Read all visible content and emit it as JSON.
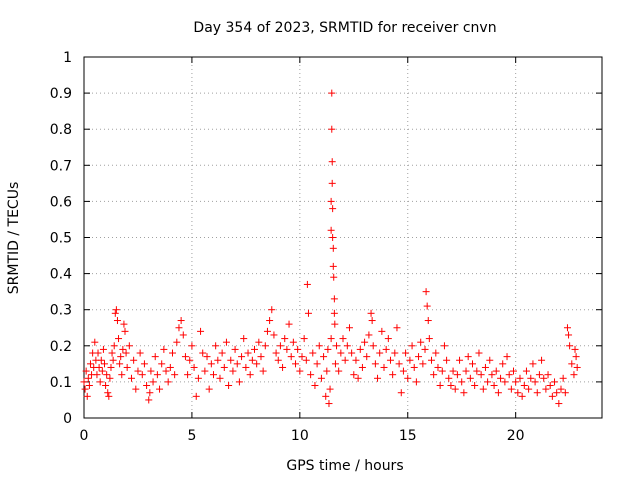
{
  "chart_data": {
    "type": "scatter",
    "title": "Day 354 of 2023, SRMTID for receiver cnvn",
    "xlabel": "GPS time / hours",
    "ylabel": "SRMTID / TECUs",
    "xlim": [
      0,
      24
    ],
    "ylim": [
      0,
      1
    ],
    "x_ticks": [
      0,
      5,
      10,
      15,
      20
    ],
    "x_tick_labels": [
      "0",
      "5",
      "10",
      "15",
      "20"
    ],
    "y_ticks": [
      0,
      0.1,
      0.2,
      0.3,
      0.4,
      0.5,
      0.6,
      0.7,
      0.8,
      0.9,
      1
    ],
    "y_tick_labels": [
      "0",
      "0.1",
      "0.2",
      "0.3",
      "0.4",
      "0.5",
      "0.6",
      "0.7",
      "0.8",
      "0.9",
      "1"
    ],
    "grid": true,
    "marker": "plus",
    "color": "#ff0000",
    "series": [
      {
        "name": "SRMTID",
        "points": [
          [
            0.0,
            0.1
          ],
          [
            0.05,
            0.08
          ],
          [
            0.1,
            0.13
          ],
          [
            0.15,
            0.06
          ],
          [
            0.2,
            0.11
          ],
          [
            0.25,
            0.09
          ],
          [
            0.3,
            0.15
          ],
          [
            0.35,
            0.12
          ],
          [
            0.4,
            0.18
          ],
          [
            0.45,
            0.14
          ],
          [
            0.5,
            0.21
          ],
          [
            0.55,
            0.16
          ],
          [
            0.6,
            0.12
          ],
          [
            0.65,
            0.18
          ],
          [
            0.7,
            0.14
          ],
          [
            0.75,
            0.1
          ],
          [
            0.8,
            0.16
          ],
          [
            0.85,
            0.13
          ],
          [
            0.9,
            0.19
          ],
          [
            0.95,
            0.15
          ],
          [
            1.0,
            0.09
          ],
          [
            1.05,
            0.12
          ],
          [
            1.1,
            0.07
          ],
          [
            1.15,
            0.06
          ],
          [
            1.2,
            0.11
          ],
          [
            1.25,
            0.14
          ],
          [
            1.3,
            0.18
          ],
          [
            1.35,
            0.16
          ],
          [
            1.4,
            0.2
          ],
          [
            1.45,
            0.29
          ],
          [
            1.5,
            0.3
          ],
          [
            1.55,
            0.27
          ],
          [
            1.6,
            0.22
          ],
          [
            1.65,
            0.15
          ],
          [
            1.7,
            0.17
          ],
          [
            1.75,
            0.12
          ],
          [
            1.8,
            0.19
          ],
          [
            1.85,
            0.26
          ],
          [
            1.9,
            0.24
          ],
          [
            1.95,
            0.18
          ],
          [
            2.0,
            0.14
          ],
          [
            2.1,
            0.2
          ],
          [
            2.2,
            0.11
          ],
          [
            2.3,
            0.16
          ],
          [
            2.4,
            0.08
          ],
          [
            2.5,
            0.13
          ],
          [
            2.6,
            0.18
          ],
          [
            2.7,
            0.12
          ],
          [
            2.8,
            0.15
          ],
          [
            2.9,
            0.09
          ],
          [
            3.0,
            0.05
          ],
          [
            3.05,
            0.07
          ],
          [
            3.1,
            0.13
          ],
          [
            3.2,
            0.1
          ],
          [
            3.3,
            0.17
          ],
          [
            3.4,
            0.12
          ],
          [
            3.5,
            0.08
          ],
          [
            3.6,
            0.15
          ],
          [
            3.7,
            0.19
          ],
          [
            3.8,
            0.13
          ],
          [
            3.9,
            0.1
          ],
          [
            4.0,
            0.14
          ],
          [
            4.1,
            0.18
          ],
          [
            4.2,
            0.12
          ],
          [
            4.3,
            0.21
          ],
          [
            4.4,
            0.25
          ],
          [
            4.5,
            0.27
          ],
          [
            4.6,
            0.23
          ],
          [
            4.7,
            0.17
          ],
          [
            4.8,
            0.12
          ],
          [
            4.9,
            0.16
          ],
          [
            5.0,
            0.2
          ],
          [
            5.1,
            0.14
          ],
          [
            5.2,
            0.06
          ],
          [
            5.3,
            0.11
          ],
          [
            5.4,
            0.24
          ],
          [
            5.5,
            0.18
          ],
          [
            5.6,
            0.13
          ],
          [
            5.7,
            0.17
          ],
          [
            5.8,
            0.08
          ],
          [
            5.9,
            0.15
          ],
          [
            6.0,
            0.12
          ],
          [
            6.1,
            0.2
          ],
          [
            6.2,
            0.16
          ],
          [
            6.3,
            0.11
          ],
          [
            6.4,
            0.18
          ],
          [
            6.5,
            0.14
          ],
          [
            6.6,
            0.21
          ],
          [
            6.7,
            0.09
          ],
          [
            6.8,
            0.16
          ],
          [
            6.9,
            0.13
          ],
          [
            7.0,
            0.19
          ],
          [
            7.1,
            0.15
          ],
          [
            7.2,
            0.1
          ],
          [
            7.3,
            0.17
          ],
          [
            7.4,
            0.22
          ],
          [
            7.5,
            0.14
          ],
          [
            7.6,
            0.18
          ],
          [
            7.7,
            0.12
          ],
          [
            7.8,
            0.16
          ],
          [
            7.9,
            0.19
          ],
          [
            8.0,
            0.15
          ],
          [
            8.1,
            0.21
          ],
          [
            8.2,
            0.17
          ],
          [
            8.3,
            0.13
          ],
          [
            8.4,
            0.2
          ],
          [
            8.5,
            0.24
          ],
          [
            8.6,
            0.27
          ],
          [
            8.7,
            0.3
          ],
          [
            8.8,
            0.23
          ],
          [
            8.9,
            0.18
          ],
          [
            9.0,
            0.16
          ],
          [
            9.1,
            0.2
          ],
          [
            9.2,
            0.14
          ],
          [
            9.3,
            0.22
          ],
          [
            9.4,
            0.19
          ],
          [
            9.5,
            0.26
          ],
          [
            9.6,
            0.17
          ],
          [
            9.7,
            0.21
          ],
          [
            9.8,
            0.15
          ],
          [
            9.9,
            0.19
          ],
          [
            10.0,
            0.13
          ],
          [
            10.1,
            0.17
          ],
          [
            10.2,
            0.22
          ],
          [
            10.3,
            0.16
          ],
          [
            10.35,
            0.37
          ],
          [
            10.4,
            0.29
          ],
          [
            10.5,
            0.12
          ],
          [
            10.6,
            0.18
          ],
          [
            10.7,
            0.09
          ],
          [
            10.8,
            0.15
          ],
          [
            10.9,
            0.2
          ],
          [
            11.0,
            0.11
          ],
          [
            11.1,
            0.17
          ],
          [
            11.2,
            0.06
          ],
          [
            11.25,
            0.13
          ],
          [
            11.3,
            0.19
          ],
          [
            11.35,
            0.04
          ],
          [
            11.4,
            0.08
          ],
          [
            11.45,
            0.22
          ],
          [
            11.45,
            0.52
          ],
          [
            11.45,
            0.6
          ],
          [
            11.48,
            0.9
          ],
          [
            11.48,
            0.8
          ],
          [
            11.5,
            0.71
          ],
          [
            11.5,
            0.65
          ],
          [
            11.52,
            0.58
          ],
          [
            11.52,
            0.5
          ],
          [
            11.55,
            0.47
          ],
          [
            11.55,
            0.42
          ],
          [
            11.57,
            0.39
          ],
          [
            11.6,
            0.33
          ],
          [
            11.6,
            0.29
          ],
          [
            11.62,
            0.26
          ],
          [
            11.65,
            0.15
          ],
          [
            11.7,
            0.2
          ],
          [
            11.8,
            0.13
          ],
          [
            11.9,
            0.18
          ],
          [
            12.0,
            0.22
          ],
          [
            12.1,
            0.16
          ],
          [
            12.2,
            0.2
          ],
          [
            12.3,
            0.25
          ],
          [
            12.4,
            0.18
          ],
          [
            12.5,
            0.12
          ],
          [
            12.6,
            0.16
          ],
          [
            12.7,
            0.11
          ],
          [
            12.8,
            0.19
          ],
          [
            12.9,
            0.14
          ],
          [
            13.0,
            0.21
          ],
          [
            13.1,
            0.17
          ],
          [
            13.2,
            0.23
          ],
          [
            13.3,
            0.29
          ],
          [
            13.35,
            0.27
          ],
          [
            13.4,
            0.2
          ],
          [
            13.5,
            0.15
          ],
          [
            13.6,
            0.11
          ],
          [
            13.7,
            0.18
          ],
          [
            13.8,
            0.24
          ],
          [
            13.9,
            0.14
          ],
          [
            14.0,
            0.19
          ],
          [
            14.1,
            0.22
          ],
          [
            14.2,
            0.16
          ],
          [
            14.3,
            0.12
          ],
          [
            14.4,
            0.18
          ],
          [
            14.5,
            0.25
          ],
          [
            14.6,
            0.15
          ],
          [
            14.7,
            0.07
          ],
          [
            14.8,
            0.13
          ],
          [
            14.9,
            0.18
          ],
          [
            15.0,
            0.11
          ],
          [
            15.1,
            0.16
          ],
          [
            15.2,
            0.2
          ],
          [
            15.3,
            0.14
          ],
          [
            15.4,
            0.1
          ],
          [
            15.5,
            0.17
          ],
          [
            15.6,
            0.21
          ],
          [
            15.7,
            0.15
          ],
          [
            15.8,
            0.19
          ],
          [
            15.85,
            0.35
          ],
          [
            15.9,
            0.31
          ],
          [
            15.95,
            0.27
          ],
          [
            16.0,
            0.22
          ],
          [
            16.1,
            0.16
          ],
          [
            16.2,
            0.12
          ],
          [
            16.3,
            0.18
          ],
          [
            16.4,
            0.14
          ],
          [
            16.5,
            0.09
          ],
          [
            16.6,
            0.13
          ],
          [
            16.7,
            0.2
          ],
          [
            16.8,
            0.16
          ],
          [
            16.9,
            0.11
          ],
          [
            17.0,
            0.09
          ],
          [
            17.1,
            0.13
          ],
          [
            17.2,
            0.08
          ],
          [
            17.3,
            0.12
          ],
          [
            17.4,
            0.16
          ],
          [
            17.5,
            0.1
          ],
          [
            17.6,
            0.07
          ],
          [
            17.7,
            0.13
          ],
          [
            17.8,
            0.17
          ],
          [
            17.9,
            0.11
          ],
          [
            18.0,
            0.15
          ],
          [
            18.1,
            0.09
          ],
          [
            18.2,
            0.13
          ],
          [
            18.3,
            0.18
          ],
          [
            18.4,
            0.12
          ],
          [
            18.5,
            0.08
          ],
          [
            18.6,
            0.14
          ],
          [
            18.7,
            0.1
          ],
          [
            18.8,
            0.16
          ],
          [
            18.9,
            0.12
          ],
          [
            19.0,
            0.09
          ],
          [
            19.1,
            0.13
          ],
          [
            19.2,
            0.07
          ],
          [
            19.3,
            0.11
          ],
          [
            19.4,
            0.15
          ],
          [
            19.5,
            0.1
          ],
          [
            19.6,
            0.17
          ],
          [
            19.7,
            0.12
          ],
          [
            19.8,
            0.08
          ],
          [
            19.9,
            0.13
          ],
          [
            20.0,
            0.1
          ],
          [
            20.1,
            0.07
          ],
          [
            20.2,
            0.11
          ],
          [
            20.3,
            0.06
          ],
          [
            20.4,
            0.09
          ],
          [
            20.5,
            0.13
          ],
          [
            20.6,
            0.08
          ],
          [
            20.7,
            0.11
          ],
          [
            20.8,
            0.15
          ],
          [
            20.9,
            0.1
          ],
          [
            21.0,
            0.07
          ],
          [
            21.1,
            0.12
          ],
          [
            21.2,
            0.16
          ],
          [
            21.3,
            0.11
          ],
          [
            21.4,
            0.08
          ],
          [
            21.5,
            0.12
          ],
          [
            21.6,
            0.09
          ],
          [
            21.7,
            0.06
          ],
          [
            21.8,
            0.1
          ],
          [
            21.9,
            0.07
          ],
          [
            22.0,
            0.04
          ],
          [
            22.1,
            0.08
          ],
          [
            22.2,
            0.11
          ],
          [
            22.3,
            0.07
          ],
          [
            22.4,
            0.25
          ],
          [
            22.45,
            0.23
          ],
          [
            22.5,
            0.2
          ],
          [
            22.6,
            0.15
          ],
          [
            22.7,
            0.12
          ],
          [
            22.75,
            0.19
          ],
          [
            22.8,
            0.17
          ],
          [
            22.85,
            0.14
          ]
        ]
      }
    ]
  }
}
